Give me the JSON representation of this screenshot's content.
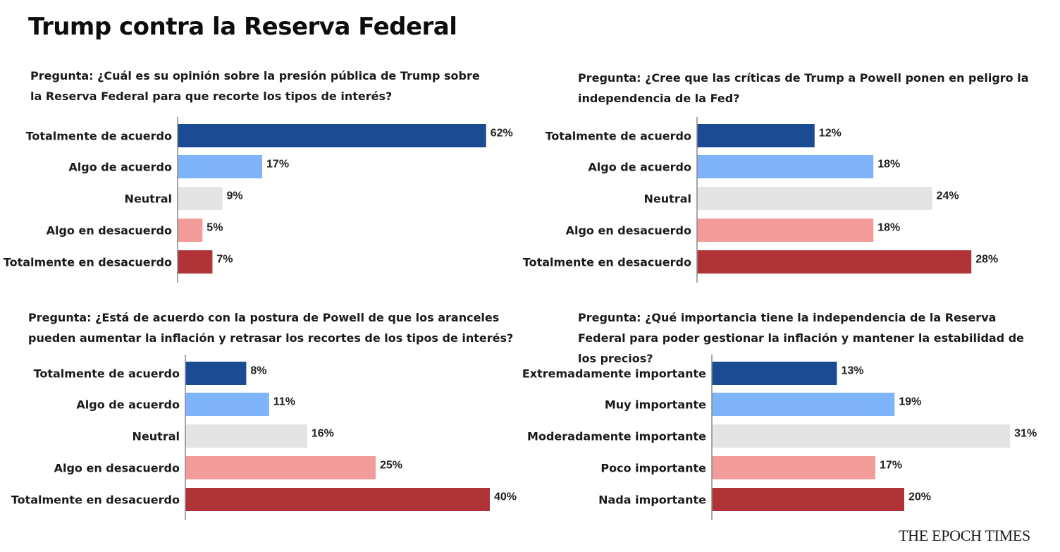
{
  "title": "Trump contra la Reserva Federal",
  "brand": "THE EPOCH TIMES",
  "colors": [
    "#1b4b93",
    "#7fb3fa",
    "#e4e4e4",
    "#f29c9a",
    "#b03337"
  ],
  "chart_data": [
    {
      "type": "bar",
      "orientation": "horizontal",
      "question": "Pregunta: ¿Cuál es su opinión sobre la presión pública de Trump sobre la Reserva Federal para que recorte los tipos de interés?",
      "categories": [
        "Totalmente de acuerdo",
        "Algo de acuerdo",
        "Neutral",
        "Algo en desacuerdo",
        "Totalmente en desacuerdo"
      ],
      "values": [
        62,
        17,
        9,
        5,
        7
      ],
      "value_labels": [
        "62%",
        "17%",
        "9%",
        "5%",
        "7%"
      ]
    },
    {
      "type": "bar",
      "orientation": "horizontal",
      "question": "Pregunta: ¿Cree que las críticas de Trump a Powell ponen en peligro la independencia de la Fed?",
      "categories": [
        "Totalmente de acuerdo",
        "Algo de acuerdo",
        "Neutral",
        "Algo en desacuerdo",
        "Totalmente en desacuerdo"
      ],
      "values": [
        12,
        18,
        24,
        18,
        28
      ],
      "value_labels": [
        "12%",
        "18%",
        "24%",
        "18%",
        "28%"
      ]
    },
    {
      "type": "bar",
      "orientation": "horizontal",
      "question": "Pregunta: ¿Está de acuerdo con la postura de Powell de que los aranceles pueden aumentar la inflación y retrasar los recortes de los tipos de interés?",
      "categories": [
        "Totalmente de acuerdo",
        "Algo de acuerdo",
        "Neutral",
        "Algo en desacuerdo",
        "Totalmente en desacuerdo"
      ],
      "values": [
        8,
        11,
        16,
        25,
        40
      ],
      "value_labels": [
        "8%",
        "11%",
        "16%",
        "25%",
        "40%"
      ]
    },
    {
      "type": "bar",
      "orientation": "horizontal",
      "question": "Pregunta: ¿Qué importancia tiene la independencia de la Reserva Federal para poder gestionar la inflación y mantener la estabilidad de los precios?",
      "categories": [
        "Extremadamente importante",
        "Muy importante",
        "Moderadamente importante",
        "Poco importante",
        "Nada importante"
      ],
      "values": [
        13,
        19,
        31,
        17,
        20
      ],
      "value_labels": [
        "13%",
        "19%",
        "31%",
        "17%",
        "20%"
      ]
    }
  ]
}
